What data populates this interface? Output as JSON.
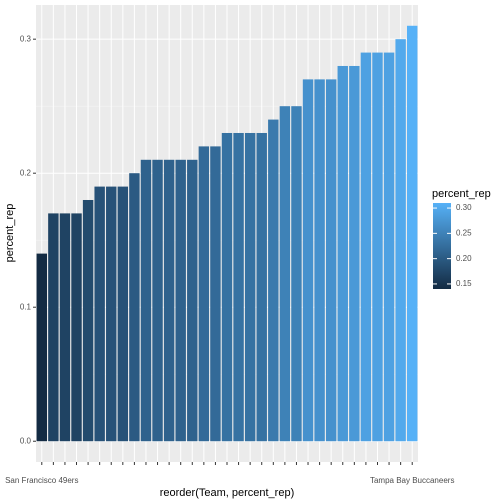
{
  "chart_data": {
    "type": "bar",
    "x_label": "reorder(Team, percent_rep)",
    "y_label": "percent_rep",
    "legend_title": "percent_rep",
    "categories": [
      "San Francisco 49ers",
      null,
      null,
      null,
      null,
      null,
      null,
      null,
      null,
      null,
      null,
      null,
      null,
      null,
      null,
      null,
      null,
      null,
      null,
      null,
      null,
      null,
      null,
      null,
      null,
      null,
      null,
      null,
      null,
      null,
      null,
      null,
      "Tampa Bay Buccaneers"
    ],
    "values": [
      0.14,
      0.17,
      0.17,
      0.17,
      0.18,
      0.19,
      0.19,
      0.19,
      0.2,
      0.21,
      0.21,
      0.21,
      0.21,
      0.21,
      0.22,
      0.22,
      0.23,
      0.23,
      0.23,
      0.23,
      0.24,
      0.25,
      0.25,
      0.27,
      0.27,
      0.27,
      0.28,
      0.28,
      0.29,
      0.29,
      0.29,
      0.3,
      0.31
    ],
    "color_low": "#132B43",
    "color_high": "#56B1F7",
    "ylim": [
      -0.0155,
      0.3255
    ],
    "yticks": [
      {
        "value": 0,
        "label": "0.0"
      },
      {
        "value": 0.1,
        "label": "0.1"
      },
      {
        "value": 0.2,
        "label": "0.2"
      },
      {
        "value": 0.3,
        "label": "0.3"
      }
    ],
    "legend_ticks": [
      {
        "value": 0.15,
        "label": "0.15"
      },
      {
        "value": 0.2,
        "label": "0.20"
      },
      {
        "value": 0.25,
        "label": "0.25"
      },
      {
        "value": 0.3,
        "label": "0.30"
      }
    ],
    "grid": true,
    "legend": "right"
  }
}
